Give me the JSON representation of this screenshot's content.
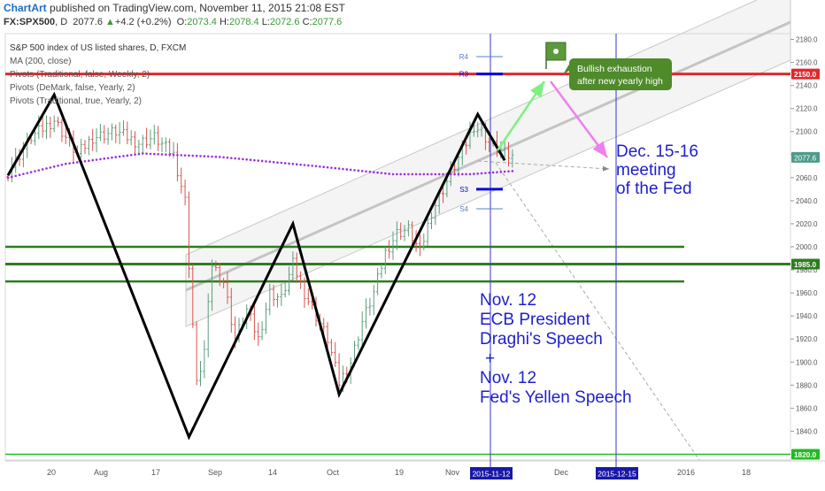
{
  "header": {
    "brand": "ChartArt",
    "published": "published on TradingView.com, November 11, 2015 21:08 EST",
    "symbol": "FX:SPX500",
    "interval": "D",
    "last": "2077.6",
    "change_arrow": "▲",
    "change": "+4.2 (+0.2%)",
    "o_label": "O:",
    "o_value": "2073.4",
    "h_label": "H:",
    "h_value": "2078.4",
    "l_label": "L:",
    "l_value": "2072.6",
    "c_label": "C:",
    "c_value": "2077.6"
  },
  "legend": [
    "S&P 500 index of US listed shares, D, FXCM",
    "MA (200, close)",
    "Pivots (Traditional, false, Weekly, 2)",
    "Pivots (DeMark, false, Yearly, 2)",
    "Pivots (Traditional, true, Yearly, 2)"
  ],
  "chart_data": {
    "type": "candlestick",
    "ylim": [
      1815,
      2185
    ],
    "y_ticks": [
      1840,
      1860,
      1880,
      1900,
      1920,
      1940,
      1960,
      1980,
      2000,
      2020,
      2040,
      2060,
      2080,
      2100,
      2120,
      2140,
      2160,
      2180
    ],
    "x_ticks": [
      "20",
      "Aug",
      "17",
      "Sep",
      "14",
      "Oct",
      "19",
      "Nov",
      "Dec",
      "2016",
      "18"
    ],
    "last_price": "2077.6",
    "price_labels": [
      {
        "value": 2150.0,
        "text": "2150.0",
        "color": "#e0282e"
      },
      {
        "value": 1985.0,
        "text": "1985.0",
        "color": "#2e7d1e"
      },
      {
        "value": 1820.0,
        "text": "1820.0",
        "color": "#22bb22"
      },
      {
        "value": 2077.6,
        "text": "2077.6",
        "color": "#4f9a8a"
      }
    ],
    "horizontal_levels": [
      {
        "value": 2150,
        "color": "#e0282e",
        "name": "yearly-high-resistance"
      },
      {
        "value": 2000,
        "color": "#2e7d1e",
        "name": "support-upper"
      },
      {
        "value": 1985,
        "color": "#2e7d1e",
        "name": "support-mid"
      },
      {
        "value": 1970,
        "color": "#2e7d1e",
        "name": "support-lower"
      },
      {
        "value": 1820,
        "color": "#22bb22",
        "name": "bottom-support"
      }
    ],
    "pivots": [
      {
        "label": "R4",
        "value": 2165
      },
      {
        "label": "R3",
        "value": 2150
      },
      {
        "label": "S3",
        "value": 2050
      },
      {
        "label": "S4",
        "value": 2033
      }
    ],
    "date_markers": [
      "2015-11-12",
      "2015-12-15"
    ],
    "zigzag_pattern": [
      {
        "idx": 0,
        "price": 2062
      },
      {
        "idx": 12,
        "price": 2132
      },
      {
        "idx": 47,
        "price": 1835
      },
      {
        "idx": 74,
        "price": 2020
      },
      {
        "idx": 86,
        "price": 1872
      },
      {
        "idx": 122,
        "price": 2115
      },
      {
        "idx": 129,
        "price": 2075
      }
    ],
    "ma_200": [
      {
        "idx": 0,
        "price": 2060
      },
      {
        "idx": 15,
        "price": 2072
      },
      {
        "idx": 35,
        "price": 2081
      },
      {
        "idx": 55,
        "price": 2078
      },
      {
        "idx": 80,
        "price": 2070
      },
      {
        "idx": 100,
        "price": 2063
      },
      {
        "idx": 120,
        "price": 2063
      },
      {
        "idx": 132,
        "price": 2066
      }
    ],
    "candle_anchors": [
      {
        "idx": 0,
        "close": 2065
      },
      {
        "idx": 6,
        "close": 2095
      },
      {
        "idx": 12,
        "close": 2110
      },
      {
        "idx": 18,
        "close": 2080
      },
      {
        "idx": 22,
        "close": 2095
      },
      {
        "idx": 28,
        "close": 2100
      },
      {
        "idx": 34,
        "close": 2090
      },
      {
        "idx": 38,
        "close": 2095
      },
      {
        "idx": 43,
        "close": 2080
      },
      {
        "idx": 46,
        "close": 2040
      },
      {
        "idx": 47,
        "close": 1985
      },
      {
        "idx": 49,
        "close": 1880
      },
      {
        "idx": 51,
        "close": 1910
      },
      {
        "idx": 53,
        "close": 1985
      },
      {
        "idx": 56,
        "close": 1970
      },
      {
        "idx": 59,
        "close": 1920
      },
      {
        "idx": 62,
        "close": 1945
      },
      {
        "idx": 65,
        "close": 1920
      },
      {
        "idx": 68,
        "close": 1960
      },
      {
        "idx": 71,
        "close": 1955
      },
      {
        "idx": 74,
        "close": 1985
      },
      {
        "idx": 77,
        "close": 1960
      },
      {
        "idx": 80,
        "close": 1940
      },
      {
        "idx": 83,
        "close": 1920
      },
      {
        "idx": 86,
        "close": 1882
      },
      {
        "idx": 89,
        "close": 1900
      },
      {
        "idx": 92,
        "close": 1935
      },
      {
        "idx": 95,
        "close": 1960
      },
      {
        "idx": 98,
        "close": 1995
      },
      {
        "idx": 101,
        "close": 2012
      },
      {
        "idx": 104,
        "close": 2015
      },
      {
        "idx": 107,
        "close": 1995
      },
      {
        "idx": 110,
        "close": 2030
      },
      {
        "idx": 113,
        "close": 2050
      },
      {
        "idx": 116,
        "close": 2070
      },
      {
        "idx": 119,
        "close": 2090
      },
      {
        "idx": 121,
        "close": 2105
      },
      {
        "idx": 123,
        "close": 2100
      },
      {
        "idx": 125,
        "close": 2090
      },
      {
        "idx": 127,
        "close": 2085
      },
      {
        "idx": 129,
        "close": 2080
      },
      {
        "idx": 131,
        "close": 2077.6
      }
    ],
    "annotations": {
      "bullish": [
        "Bullish exhaustion",
        "after new yearly high"
      ],
      "fed_dec": [
        "Dec. 15-16",
        "meeting",
        "of the Fed"
      ],
      "nov12": [
        "Nov. 12",
        "ECB President",
        "Draghi's Speech",
        "+",
        "Nov. 12",
        "Fed's Yellen Speech"
      ]
    },
    "colors": {
      "up": "#5a9e7c",
      "down": "#d9534f",
      "zigzag": "#000000",
      "ma": "#9b30d9",
      "channel": "#d6d6d6",
      "green_arrow": "#80f080",
      "pink_arrow": "#ee80ee",
      "annotation_text": "#1f1fcc",
      "callout_bg": "#4f8a2b"
    }
  }
}
